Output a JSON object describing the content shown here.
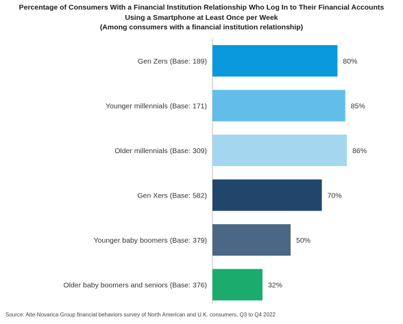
{
  "chart_data": {
    "type": "bar",
    "orientation": "horizontal",
    "title_lines": [
      "Percentage of Consumers With a Financial Institution Relationship Who Log In to Their Financial Accounts",
      "Using a Smartphone at Least Once per Week",
      "(Among consumers with a financial institution relationship)"
    ],
    "categories": [
      "Gen Zers (Base: 189)",
      "Younger millennials (Base: 171)",
      "Older millennials (Base: 309)",
      "Gen Xers (Base: 582)",
      "Younger baby boomers (Base: 379)",
      "Older baby boomers and seniors (Base: 376)"
    ],
    "values": [
      80,
      85,
      86,
      70,
      50,
      32
    ],
    "value_labels": [
      "80%",
      "85%",
      "86%",
      "70%",
      "50%",
      "32%"
    ],
    "colors": [
      "#0a99dd",
      "#62bde8",
      "#a3d7ef",
      "#22466b",
      "#4c6785",
      "#1aab6d"
    ],
    "xlim": [
      0,
      100
    ],
    "grid": false,
    "legend": "none",
    "source": "Source: Aite-Novarica Group financial behaviors survey of North American and U.K. consumers, Q3 to Q4 2022"
  }
}
